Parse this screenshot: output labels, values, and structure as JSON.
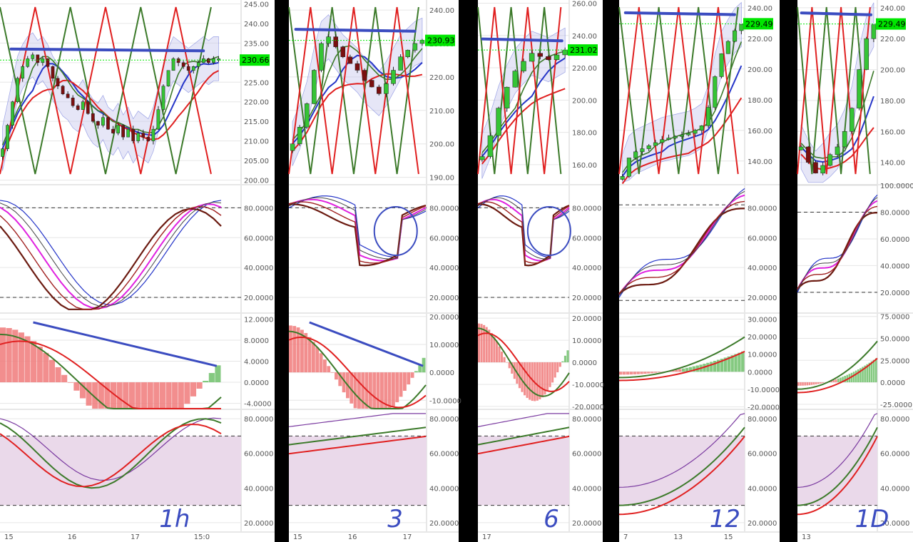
{
  "colors": {
    "background": "#000000",
    "panel": "#ffffff",
    "grid": "#e6e6e6",
    "axis_text": "#555555",
    "bull_candle": "#35c435",
    "bear_candle": "#7a0f0f",
    "price_tag": "#00e600",
    "annotation": "#3b4cc0",
    "red_line": "#e02020",
    "green_line": "#3c7a2a",
    "blue_line": "#2535c8",
    "magenta": "#e020e0",
    "brown": "#6b1a10",
    "rsi_band": "#ead9ea",
    "hist_green": "#6fbf6a",
    "hist_red": "#f07a7a",
    "hist_brown": "#b46a5a"
  },
  "chart_data": [
    {
      "type": "candlestick",
      "timeframe_label": "1h",
      "price_label": "230.66",
      "x_ticks": [
        "15",
        "16",
        "17",
        "15:0"
      ],
      "panels": [
        {
          "name": "price",
          "y_ticks": [
            "245.00",
            "240.00",
            "235.00",
            "230.00",
            "225.00",
            "220.00",
            "215.00",
            "210.00",
            "205.00",
            "200.00"
          ],
          "ylim": [
            199,
            246
          ],
          "last_price": 230.66,
          "closes": [
            208,
            214,
            220,
            226,
            229,
            231,
            232,
            230,
            231,
            229,
            226,
            224,
            222,
            221,
            219,
            218,
            220,
            217,
            215,
            214,
            216,
            213,
            212,
            214,
            211,
            213,
            210,
            212,
            211,
            210,
            213,
            218,
            224,
            228,
            231,
            230,
            229,
            228,
            229,
            230,
            231,
            230,
            231,
            231
          ]
        },
        {
          "name": "stochastic",
          "y_ticks": [
            "80.0000",
            "60.0000",
            "40.0000",
            "20.0000"
          ],
          "ylim": [
            10,
            95
          ],
          "dashed": [
            80,
            20
          ]
        },
        {
          "name": "macd",
          "y_ticks": [
            "12.0000",
            "8.0000",
            "4.0000",
            "0.0000",
            "-4.0000"
          ],
          "ylim": [
            -5,
            13
          ]
        },
        {
          "name": "rsi",
          "y_ticks": [
            "80.0000",
            "60.0000",
            "40.0000",
            "20.0000"
          ],
          "ylim": [
            15,
            85
          ],
          "dashed": [
            70,
            30
          ]
        }
      ]
    },
    {
      "type": "candlestick",
      "timeframe_label": "3",
      "price_label": "230.93",
      "x_ticks": [
        "15",
        "16",
        "17"
      ],
      "panels": [
        {
          "name": "price",
          "y_ticks": [
            "240.00",
            "230.00",
            "220.00",
            "210.00",
            "200.00",
            "190.00"
          ],
          "ylim": [
            188,
            243
          ],
          "last_price": 230.93,
          "closes": [
            200,
            205,
            212,
            222,
            230,
            232,
            229,
            226,
            224,
            222,
            219,
            217,
            215,
            218,
            222,
            226,
            228,
            230,
            231
          ]
        },
        {
          "name": "stochastic",
          "y_ticks": [
            "80.0000",
            "60.0000",
            "40.0000",
            "20.0000"
          ],
          "ylim": [
            10,
            95
          ],
          "dashed": [
            80
          ]
        },
        {
          "name": "macd",
          "y_ticks": [
            "20.0000",
            "10.0000",
            "0.0000",
            "-10.0000"
          ],
          "ylim": [
            -13,
            21
          ]
        },
        {
          "name": "rsi",
          "y_ticks": [
            "80.0000",
            "60.0000",
            "40.0000",
            "20.0000"
          ],
          "ylim": [
            15,
            85
          ],
          "dashed": [
            70,
            30
          ]
        }
      ]
    },
    {
      "type": "candlestick",
      "timeframe_label": "6",
      "price_label": "231.02",
      "x_ticks": [
        "17"
      ],
      "panels": [
        {
          "name": "price",
          "y_ticks": [
            "260.00",
            "240.00",
            "220.00",
            "200.00",
            "180.00",
            "160.00"
          ],
          "ylim": [
            148,
            262
          ],
          "last_price": 231.02,
          "closes": [
            165,
            178,
            195,
            208,
            218,
            224,
            229,
            227,
            225,
            228,
            231
          ]
        },
        {
          "name": "stochastic",
          "y_ticks": [
            "80.0000",
            "60.0000",
            "40.0000",
            "20.0000"
          ],
          "ylim": [
            10,
            95
          ],
          "dashed": [
            80,
            20
          ]
        },
        {
          "name": "macd",
          "y_ticks": [
            "20.0000",
            "10.0000",
            "0.0000",
            "-10.0000",
            "-20.0000"
          ],
          "ylim": [
            -21,
            22
          ]
        },
        {
          "name": "rsi",
          "y_ticks": [
            "80.0000",
            "60.0000",
            "40.0000",
            "20.0000"
          ],
          "ylim": [
            15,
            85
          ],
          "dashed": [
            70,
            30
          ]
        }
      ]
    },
    {
      "type": "candlestick",
      "timeframe_label": "12",
      "price_label": "229.49",
      "x_ticks": [
        "7",
        "13",
        "15"
      ],
      "panels": [
        {
          "name": "price",
          "y_ticks": [
            "240.00",
            "220.00",
            "200.00",
            "180.00",
            "160.00",
            "140.00"
          ],
          "ylim": [
            125,
            245
          ],
          "last_price": 229.49,
          "closes": [
            130,
            142,
            146,
            148,
            150,
            152,
            154,
            155,
            156,
            157,
            158,
            160,
            163,
            175,
            195,
            210,
            218,
            225,
            229
          ]
        },
        {
          "name": "stochastic",
          "y_ticks": [
            "80.0000",
            "60.0000",
            "40.0000",
            "20.0000"
          ],
          "ylim": [
            10,
            95
          ],
          "dashed": [
            82,
            18
          ]
        },
        {
          "name": "macd",
          "y_ticks": [
            "30.0000",
            "20.0000",
            "10.0000",
            "0.0000",
            "-10.0000",
            "-20.0000"
          ],
          "ylim": [
            -21,
            33
          ]
        },
        {
          "name": "rsi",
          "y_ticks": [
            "80.0000",
            "60.0000",
            "40.0000",
            "20.0000"
          ],
          "ylim": [
            15,
            85
          ],
          "dashed": [
            70,
            30
          ]
        }
      ]
    },
    {
      "type": "candlestick",
      "timeframe_label": "1D",
      "price_label": "229.49",
      "x_ticks": [
        "13"
      ],
      "panels": [
        {
          "name": "price",
          "y_ticks": [
            "240.00",
            "220.00",
            "200.00",
            "180.00",
            "160.00",
            "140.00"
          ],
          "ylim": [
            126,
            245
          ],
          "last_price": 229.49,
          "closes": [
            150,
            140,
            133,
            138,
            145,
            150,
            160,
            175,
            200,
            220,
            229
          ]
        },
        {
          "name": "stochastic",
          "y_ticks": [
            "100.0000",
            "80.0000",
            "60.0000",
            "40.0000",
            "20.0000"
          ],
          "ylim": [
            5,
            100
          ],
          "dashed": [
            80,
            20
          ]
        },
        {
          "name": "macd",
          "y_ticks": [
            "75.0000",
            "50.0000",
            "25.0000",
            "0.0000",
            "-25.0000"
          ],
          "ylim": [
            -30,
            78
          ]
        },
        {
          "name": "rsi",
          "y_ticks": [
            "80.0000",
            "60.0000",
            "40.0000",
            "20.0000"
          ],
          "ylim": [
            15,
            85
          ],
          "dashed": [
            70,
            30
          ]
        }
      ]
    }
  ]
}
